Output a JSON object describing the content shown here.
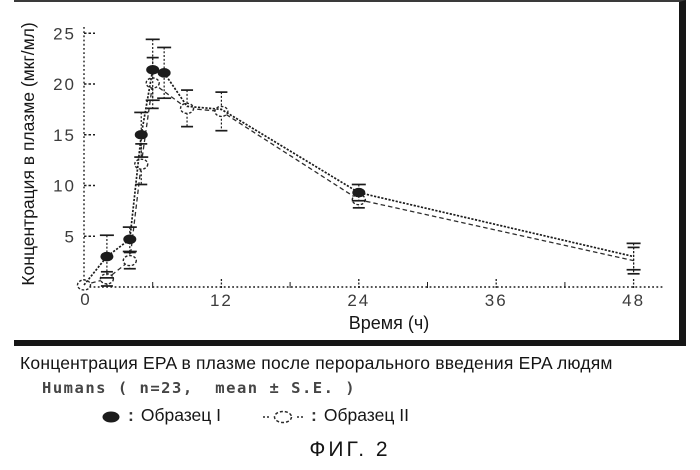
{
  "figure": {
    "caption_line1": "Концентрация EPA в плазме после перорального введения EPA людям",
    "caption_line2": "Humans ( n=23,  mean ± S.E. )",
    "fig_label": "ФИГ. 2"
  },
  "legend": {
    "separator": ":",
    "items": [
      {
        "label": "Образец I"
      },
      {
        "label": "Образец II"
      }
    ]
  },
  "colors": {
    "ink": "#1c1c1c",
    "text": "#1d1d1d",
    "paper": "#ffffff"
  },
  "chart_data": {
    "type": "line",
    "title": "",
    "xlabel": "Время (ч)",
    "ylabel": "Концентрация в плазме (мкг/мл)",
    "xlim": [
      0,
      48
    ],
    "ylim": [
      0,
      25
    ],
    "xticks_labeled": [
      12,
      24,
      36,
      48
    ],
    "xticks_minor": [
      6,
      18,
      30,
      42
    ],
    "yticks": [
      0,
      5,
      10,
      15,
      20,
      25
    ],
    "origin_label": "0",
    "grid": false,
    "legend_position": "below",
    "series": [
      {
        "name": "Образец I",
        "marker": "filled-circle",
        "line": "solid",
        "x": [
          0,
          2,
          4,
          5,
          6,
          7,
          9,
          12,
          24,
          48
        ],
        "y": [
          0.2,
          3.0,
          4.7,
          15.0,
          21.4,
          21.1,
          17.8,
          17.5,
          9.3,
          3.0
        ],
        "err": [
          0,
          2.1,
          1.2,
          2.2,
          3.0,
          2.5,
          0,
          0,
          0.8,
          1.3
        ],
        "marker_at": [
          2,
          4,
          5,
          6,
          7,
          24
        ]
      },
      {
        "name": "Образец II",
        "marker": "open-circle",
        "line": "dashed",
        "x": [
          0,
          2,
          4,
          5,
          6,
          9,
          12,
          24,
          48
        ],
        "y": [
          0.2,
          0.8,
          2.6,
          12.1,
          20.1,
          17.6,
          17.3,
          8.6,
          2.6
        ],
        "err": [
          0,
          0.7,
          0.8,
          2.0,
          2.5,
          1.8,
          1.9,
          0.8,
          1.3
        ],
        "marker_at": [
          0,
          2,
          4,
          5,
          6,
          9,
          12,
          24
        ]
      }
    ]
  }
}
